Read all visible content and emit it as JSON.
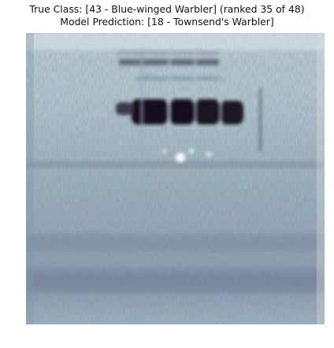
{
  "title": {
    "line1": "True Class: [43 - Blue-winged Warbler] (ranked 35 of 48)",
    "line2": "Model Prediction: [18 - Townsend's Warbler]"
  },
  "image": {
    "kind": "spectrogram",
    "colormap": "bone-reversed",
    "colors": {
      "background": "#b7cfd2",
      "light": "#d8e7e8",
      "mid": "#94a9b4",
      "dark": "#4d5066",
      "darkest": "#14111c"
    }
  }
}
